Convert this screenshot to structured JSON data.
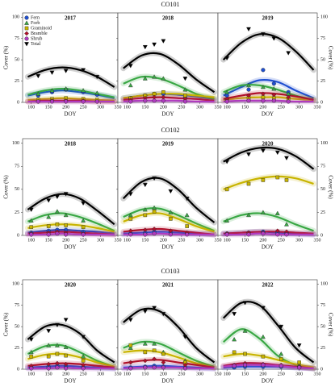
{
  "sites": [
    "CO101",
    "CO102",
    "CO103"
  ],
  "series_styles": [
    {
      "name": "Fern",
      "color": "#1f4fd0",
      "marker": "circle"
    },
    {
      "name": "Forb",
      "color": "#3aa845",
      "marker": "triangle-up"
    },
    {
      "name": "Graminoid",
      "color": "#c8b400",
      "marker": "square"
    },
    {
      "name": "Bramble",
      "color": "#b0102a",
      "marker": "diamond"
    },
    {
      "name": "Shrub",
      "color": "#b03cc0",
      "marker": "circle"
    },
    {
      "name": "Total",
      "color": "#000000",
      "marker": "triangle-down"
    }
  ],
  "fit_x": [
    90,
    140,
    190,
    240,
    290,
    340
  ],
  "chart_data": [
    {
      "type": "scatter",
      "title": "2017",
      "xlabel": "DOY",
      "ylabel": "Cover (%)",
      "legend": "upper left",
      "xlim": [
        75,
        350
      ],
      "xticks": [
        100,
        150,
        200,
        250,
        300,
        350
      ],
      "ylim": [
        0,
        105
      ],
      "yticks": [
        0,
        25,
        50,
        75,
        100
      ],
      "x": [
        120,
        160,
        200,
        250,
        290
      ],
      "series": [
        {
          "values": [
            8,
            12,
            15,
            12,
            9
          ],
          "fit": [
            8,
            12,
            14,
            12,
            9,
            5
          ]
        },
        {
          "values": [
            10,
            14,
            16,
            14,
            11
          ],
          "fit": [
            9,
            14,
            16,
            14,
            10,
            6
          ]
        },
        {
          "values": [
            3,
            4,
            5,
            4,
            3
          ],
          "fit": [
            3,
            4,
            5,
            4,
            3,
            2
          ]
        },
        {
          "values": [
            1,
            2,
            2,
            2,
            1
          ],
          "fit": [
            1,
            2,
            2,
            2,
            1,
            1
          ]
        },
        {
          "values": [
            1,
            1,
            1,
            1,
            1
          ],
          "fit": [
            1,
            1,
            1,
            1,
            1,
            1
          ]
        },
        {
          "values": [
            31,
            35,
            37,
            38,
            30
          ],
          "fit": [
            30,
            38,
            41,
            38,
            30,
            18
          ]
        }
      ]
    },
    {
      "type": "scatter",
      "title": "2018",
      "xlabel": "DOY",
      "xlim": [
        75,
        350
      ],
      "xticks": [
        100,
        150,
        200,
        250,
        300,
        350
      ],
      "ylim": [
        0,
        105
      ],
      "yticks": [
        0,
        25,
        50,
        75,
        100
      ],
      "x": [
        110,
        150,
        175,
        200,
        260
      ],
      "series": [
        {
          "values": [
            5,
            8,
            10,
            10,
            6
          ],
          "fit": [
            5,
            8,
            10,
            9,
            7,
            4
          ]
        },
        {
          "values": [
            20,
            28,
            30,
            28,
            15
          ],
          "fit": [
            22,
            30,
            28,
            20,
            10,
            4
          ]
        },
        {
          "values": [
            5,
            8,
            10,
            12,
            8
          ],
          "fit": [
            5,
            8,
            10,
            10,
            8,
            6
          ]
        },
        {
          "values": [
            3,
            5,
            6,
            6,
            4
          ],
          "fit": [
            3,
            5,
            6,
            5,
            4,
            2
          ]
        },
        {
          "values": [
            1,
            2,
            2,
            2,
            1
          ],
          "fit": [
            1,
            2,
            2,
            2,
            1,
            1
          ]
        },
        {
          "values": [
            43,
            65,
            68,
            72,
            28
          ],
          "fit": [
            40,
            55,
            57,
            45,
            27,
            12
          ]
        }
      ]
    },
    {
      "type": "scatter",
      "title": "2019",
      "xlabel": "DOY",
      "ylabel": "Cover (%)",
      "xlim": [
        75,
        350
      ],
      "xticks": [
        100,
        150,
        200,
        250,
        300,
        350
      ],
      "ylim": [
        0,
        105
      ],
      "yticks": [
        0,
        25,
        50,
        75,
        100
      ],
      "x": [
        100,
        160,
        200,
        230,
        270
      ],
      "series": [
        {
          "values": [
            8,
            15,
            38,
            22,
            12
          ],
          "fit": [
            8,
            18,
            26,
            24,
            14,
            5
          ]
        },
        {
          "values": [
            12,
            20,
            18,
            16,
            10
          ],
          "fit": [
            12,
            20,
            20,
            15,
            8,
            3
          ]
        },
        {
          "values": [
            3,
            5,
            6,
            5,
            4
          ],
          "fit": [
            3,
            5,
            6,
            6,
            4,
            3
          ]
        },
        {
          "values": [
            4,
            8,
            10,
            9,
            6
          ],
          "fit": [
            4,
            8,
            11,
            10,
            7,
            3
          ]
        },
        {
          "values": [
            1,
            2,
            2,
            2,
            1
          ],
          "fit": [
            1,
            2,
            2,
            2,
            1,
            1
          ]
        },
        {
          "values": [
            52,
            86,
            80,
            75,
            58
          ],
          "fit": [
            50,
            70,
            80,
            76,
            60,
            38
          ]
        }
      ]
    },
    {
      "type": "scatter",
      "title": "2018",
      "xlabel": "DOY",
      "ylabel": "Cover (%)",
      "xlim": [
        75,
        350
      ],
      "xticks": [
        100,
        150,
        200,
        250,
        300,
        350
      ],
      "ylim": [
        0,
        105
      ],
      "yticks": [
        0,
        25,
        50,
        75,
        100
      ],
      "x": [
        100,
        150,
        175,
        200,
        250
      ],
      "series": [
        {
          "values": [
            3,
            5,
            6,
            6,
            4
          ],
          "fit": [
            3,
            5,
            6,
            5,
            4,
            2
          ]
        },
        {
          "values": [
            16,
            20,
            26,
            22,
            16
          ],
          "fit": [
            15,
            22,
            24,
            20,
            13,
            5
          ]
        },
        {
          "values": [
            9,
            10,
            12,
            11,
            9
          ],
          "fit": [
            8,
            11,
            12,
            11,
            8,
            4
          ]
        },
        {
          "values": [
            2,
            3,
            4,
            3,
            2
          ],
          "fit": [
            2,
            3,
            4,
            3,
            2,
            1
          ]
        },
        {
          "values": [
            1,
            1,
            2,
            1,
            1
          ],
          "fit": [
            1,
            1,
            2,
            1,
            1,
            1
          ]
        },
        {
          "values": [
            28,
            38,
            42,
            45,
            35
          ],
          "fit": [
            28,
            40,
            45,
            40,
            27,
            12
          ]
        }
      ]
    },
    {
      "type": "scatter",
      "title": "2019",
      "xlabel": "DOY",
      "xlim": [
        75,
        350
      ],
      "xticks": [
        100,
        150,
        200,
        250,
        300,
        350
      ],
      "ylim": [
        0,
        105
      ],
      "yticks": [
        0,
        25,
        50,
        75,
        100
      ],
      "x": [
        110,
        150,
        175,
        220,
        265
      ],
      "series": [
        {
          "values": [
            2,
            3,
            4,
            3,
            2
          ],
          "fit": [
            2,
            3,
            4,
            3,
            2,
            1
          ]
        },
        {
          "values": [
            22,
            28,
            30,
            25,
            22
          ],
          "fit": [
            20,
            28,
            29,
            22,
            13,
            5
          ]
        },
        {
          "values": [
            18,
            22,
            26,
            18,
            10
          ],
          "fit": [
            15,
            22,
            24,
            18,
            10,
            4
          ]
        },
        {
          "values": [
            5,
            6,
            7,
            5,
            3
          ],
          "fit": [
            4,
            6,
            7,
            5,
            3,
            1
          ]
        },
        {
          "values": [
            1,
            1,
            2,
            1,
            1
          ],
          "fit": [
            1,
            1,
            2,
            1,
            1,
            1
          ]
        },
        {
          "values": [
            45,
            55,
            62,
            48,
            40
          ],
          "fit": [
            40,
            58,
            62,
            50,
            30,
            14
          ]
        }
      ]
    },
    {
      "type": "scatter",
      "title": "2020",
      "xlabel": "DOY",
      "ylabel": "Cover (%)",
      "xlim": [
        75,
        350
      ],
      "xticks": [
        100,
        150,
        200,
        250,
        300,
        350
      ],
      "ylim": [
        0,
        105
      ],
      "yticks": [
        0,
        25,
        50,
        75,
        100
      ],
      "x": [
        100,
        160,
        200,
        240,
        265
      ],
      "series": [
        {
          "values": [
            2,
            3,
            4,
            3,
            3
          ],
          "fit": [
            2,
            3,
            4,
            3,
            2,
            1
          ]
        },
        {
          "values": [
            16,
            22,
            25,
            24,
            12
          ],
          "fit": [
            15,
            22,
            24,
            20,
            12,
            5
          ]
        },
        {
          "values": [
            50,
            56,
            60,
            63,
            60
          ],
          "fit": [
            50,
            57,
            62,
            64,
            62,
            56
          ]
        },
        {
          "values": [
            2,
            3,
            3,
            5,
            4
          ],
          "fit": [
            2,
            3,
            4,
            4,
            3,
            2
          ]
        },
        {
          "values": [
            1,
            1,
            2,
            1,
            1
          ],
          "fit": [
            1,
            1,
            2,
            1,
            1,
            1
          ]
        },
        {
          "values": [
            80,
            88,
            92,
            90,
            84
          ],
          "fit": [
            80,
            90,
            95,
            94,
            86,
            72
          ]
        }
      ]
    },
    {
      "type": "scatter",
      "title": "2020",
      "xlabel": "DOY",
      "ylabel": "Cover (%)",
      "xlim": [
        75,
        350
      ],
      "xticks": [
        100,
        150,
        200,
        250,
        300,
        350
      ],
      "ylim": [
        0,
        105
      ],
      "yticks": [
        0,
        25,
        50,
        75,
        100
      ],
      "x": [
        100,
        150,
        175,
        200,
        250
      ],
      "series": [
        {
          "values": [
            2,
            3,
            4,
            3,
            2
          ],
          "fit": [
            2,
            3,
            4,
            3,
            2,
            1
          ]
        },
        {
          "values": [
            20,
            28,
            28,
            26,
            15
          ],
          "fit": [
            18,
            27,
            28,
            20,
            10,
            3
          ]
        },
        {
          "values": [
            15,
            15,
            18,
            16,
            10
          ],
          "fit": [
            12,
            17,
            18,
            14,
            8,
            3
          ]
        },
        {
          "values": [
            4,
            6,
            7,
            6,
            5
          ],
          "fit": [
            4,
            6,
            7,
            6,
            4,
            2
          ]
        },
        {
          "values": [
            1,
            1,
            2,
            1,
            1
          ],
          "fit": [
            1,
            1,
            2,
            1,
            1,
            1
          ]
        },
        {
          "values": [
            35,
            45,
            52,
            58,
            38
          ],
          "fit": [
            35,
            50,
            52,
            42,
            22,
            8
          ]
        }
      ]
    },
    {
      "type": "scatter",
      "title": "2021",
      "xlabel": "DOY",
      "xlim": [
        75,
        350
      ],
      "xticks": [
        100,
        150,
        200,
        250,
        300,
        350
      ],
      "ylim": [
        0,
        105
      ],
      "yticks": [
        0,
        25,
        50,
        75,
        100
      ],
      "x": [
        110,
        150,
        175,
        200,
        260
      ],
      "series": [
        {
          "values": [
            2,
            3,
            4,
            3,
            2
          ],
          "fit": [
            2,
            3,
            4,
            3,
            2,
            1
          ]
        },
        {
          "values": [
            25,
            30,
            30,
            20,
            10
          ],
          "fit": [
            25,
            32,
            30,
            20,
            10,
            3
          ]
        },
        {
          "values": [
            28,
            20,
            22,
            18,
            8
          ],
          "fit": [
            20,
            22,
            20,
            14,
            7,
            2
          ]
        },
        {
          "values": [
            8,
            10,
            12,
            8,
            5
          ],
          "fit": [
            7,
            10,
            11,
            8,
            5,
            2
          ]
        },
        {
          "values": [
            1,
            2,
            2,
            2,
            1
          ],
          "fit": [
            1,
            2,
            2,
            2,
            1,
            1
          ]
        },
        {
          "values": [
            58,
            68,
            72,
            65,
            38
          ],
          "fit": [
            55,
            70,
            68,
            50,
            25,
            8
          ]
        }
      ]
    },
    {
      "type": "scatter",
      "title": "2022",
      "xlabel": "DOY",
      "ylabel": "Cover (%)",
      "xlim": [
        75,
        350
      ],
      "xticks": [
        100,
        150,
        200,
        250,
        300,
        350
      ],
      "ylim": [
        0,
        105
      ],
      "yticks": [
        0,
        25,
        50,
        75,
        100
      ],
      "x": [
        120,
        150,
        200,
        250,
        300
      ],
      "series": [
        {
          "values": [
            2,
            3,
            3,
            3,
            2
          ],
          "fit": [
            2,
            3,
            3,
            3,
            2,
            1
          ]
        },
        {
          "values": [
            35,
            45,
            38,
            18,
            5
          ],
          "fit": [
            32,
            47,
            36,
            16,
            5,
            1
          ]
        },
        {
          "values": [
            20,
            18,
            15,
            12,
            8
          ],
          "fit": [
            15,
            18,
            16,
            11,
            6,
            2
          ]
        },
        {
          "values": [
            5,
            7,
            6,
            5,
            3
          ],
          "fit": [
            4,
            7,
            7,
            5,
            3,
            1
          ]
        },
        {
          "values": [
            4,
            5,
            5,
            4,
            2
          ],
          "fit": [
            3,
            5,
            5,
            4,
            2,
            1
          ]
        },
        {
          "values": [
            65,
            78,
            72,
            50,
            28
          ],
          "fit": [
            60,
            78,
            75,
            52,
            25,
            8
          ]
        }
      ]
    }
  ]
}
